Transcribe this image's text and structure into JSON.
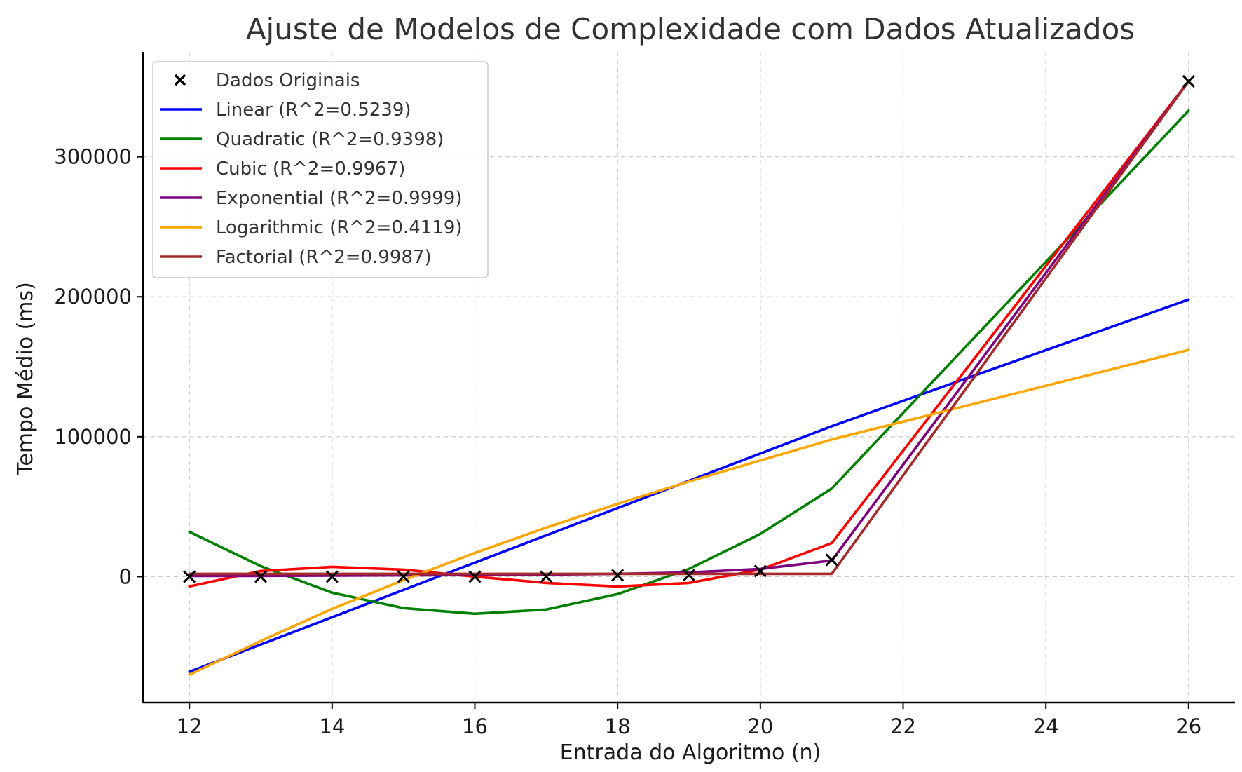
{
  "chart_data": {
    "type": "line",
    "title": "Ajuste de Modelos de Complexidade com Dados Atualizados",
    "xlabel": "Entrada do Algoritmo (n)",
    "ylabel": "Tempo Médio (ms)",
    "x": [
      12,
      13,
      14,
      15,
      16,
      17,
      18,
      19,
      20,
      21,
      26
    ],
    "xlim": [
      11.35,
      26.65
    ],
    "ylim": [
      -90000,
      375000
    ],
    "x_ticks": [
      12,
      14,
      16,
      18,
      20,
      22,
      24,
      26
    ],
    "y_ticks": [
      0,
      100000,
      200000,
      300000
    ],
    "grid": true,
    "legend_position": "top-left",
    "scatter": {
      "name": "Dados Originais",
      "marker": "x",
      "color": "#000000",
      "values": [
        0,
        0,
        0,
        0,
        0,
        0,
        1000,
        1000,
        4000,
        12000,
        354000
      ]
    },
    "series": [
      {
        "name": "Linear (R^2=0.5239)",
        "color": "#0000ff",
        "values": [
          -68000,
          -48500,
          -29000,
          -9500,
          10000,
          29500,
          49000,
          68500,
          88000,
          107500,
          198000
        ]
      },
      {
        "name": "Quadratic (R^2=0.9398)",
        "color": "#008000",
        "values": [
          32000,
          7500,
          -11500,
          -22500,
          -26500,
          -23500,
          -12500,
          5500,
          30500,
          63000,
          333000
        ]
      },
      {
        "name": "Cubic (R^2=0.9967)",
        "color": "#ff0000",
        "values": [
          -7000,
          4000,
          7000,
          5000,
          0,
          -4500,
          -7000,
          -4500,
          5000,
          24000,
          354000
        ]
      },
      {
        "name": "Exponential (R^2=0.9999)",
        "color": "#800080",
        "values": [
          500,
          500,
          700,
          900,
          1100,
          1500,
          2000,
          3000,
          5500,
          11500,
          354000
        ]
      },
      {
        "name": "Logarithmic (R^2=0.4119)",
        "color": "#ffa500",
        "values": [
          -70000,
          -46000,
          -23000,
          -2500,
          17000,
          35000,
          52000,
          68000,
          83000,
          98000,
          162000
        ]
      },
      {
        "name": "Factorial (R^2=0.9987)",
        "color": "#a52a2a",
        "values": [
          2000,
          2000,
          2000,
          2000,
          2000,
          2000,
          2000,
          2000,
          2000,
          2000,
          354000
        ]
      }
    ]
  }
}
